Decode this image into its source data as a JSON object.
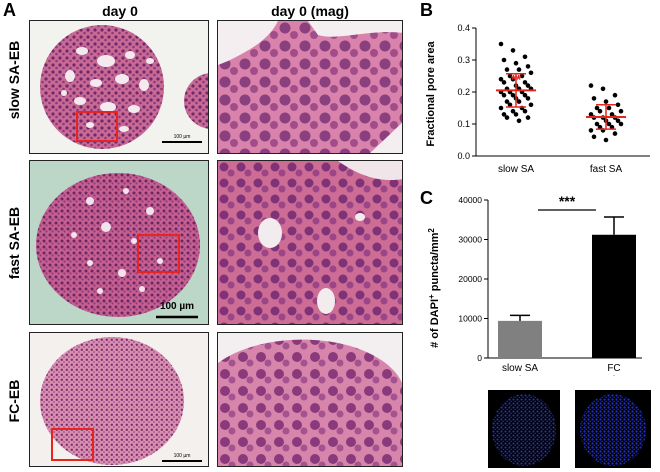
{
  "panel_labels": {
    "a": "A",
    "b": "B",
    "c": "C"
  },
  "columns": {
    "left": "day 0",
    "right": "day 0 (mag)"
  },
  "rows": [
    {
      "label": "slow SA-EB",
      "scale_bar": "100 µm"
    },
    {
      "label": "fast SA-EB",
      "scale_bar": "100 µm"
    },
    {
      "label": "FC-EB",
      "scale_bar": "100 µm"
    }
  ],
  "chart_data": [
    {
      "type": "scatter",
      "ylabel": "Fractional pore area",
      "ylim": [
        0.0,
        0.4
      ],
      "yticks": [
        "0.0",
        "0.1",
        "0.2",
        "0.3",
        "0.4"
      ],
      "categories": [
        "slow SA",
        "fast SA"
      ],
      "series": [
        {
          "values": [
            0.35,
            0.33,
            0.31,
            0.3,
            0.29,
            0.28,
            0.27,
            0.27,
            0.26,
            0.25,
            0.25,
            0.24,
            0.24,
            0.23,
            0.23,
            0.22,
            0.22,
            0.21,
            0.21,
            0.21,
            0.2,
            0.2,
            0.2,
            0.19,
            0.19,
            0.19,
            0.18,
            0.18,
            0.17,
            0.17,
            0.16,
            0.16,
            0.15,
            0.15,
            0.14,
            0.14,
            0.13,
            0.13,
            0.12,
            0.12,
            0.11
          ],
          "mean": 0.205,
          "sd": 0.052,
          "significance": "**"
        },
        {
          "values": [
            0.22,
            0.21,
            0.19,
            0.18,
            0.17,
            0.16,
            0.15,
            0.15,
            0.14,
            0.14,
            0.13,
            0.13,
            0.12,
            0.12,
            0.12,
            0.11,
            0.11,
            0.1,
            0.1,
            0.1,
            0.09,
            0.09,
            0.08,
            0.08,
            0.07,
            0.06,
            0.05
          ],
          "mean": 0.122,
          "sd": 0.038
        }
      ],
      "colors": {
        "points": "#000000",
        "mean_line": "#e8241f",
        "significance": "#e8241f"
      }
    },
    {
      "type": "bar",
      "ylabel": "# of DAPI+ puncta/mm2",
      "ylabel_parts": {
        "pre": "# of DAPI",
        "sup1": "+",
        "mid": " puncta/mm",
        "sup2": "2"
      },
      "ylim": [
        0,
        40000
      ],
      "yticks": [
        "0",
        "10000",
        "20000",
        "30000",
        "40000"
      ],
      "categories": [
        "slow SA",
        "FC"
      ],
      "values": [
        9400,
        31200
      ],
      "errors": [
        1400,
        4500
      ],
      "colors": [
        "#808080",
        "#000000"
      ],
      "significance": "***"
    }
  ],
  "colors": {
    "highlight_box": "#e8241f",
    "he_stain": "#c9567e",
    "dapi": "#1c2fd6"
  }
}
